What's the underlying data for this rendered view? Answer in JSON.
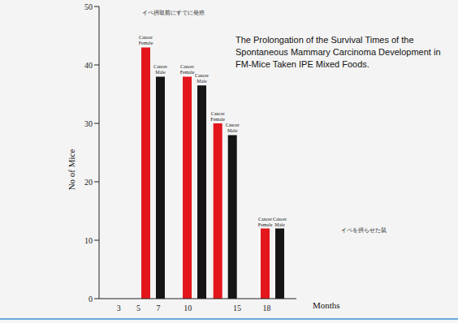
{
  "chart_data": {
    "type": "bar",
    "title": "The Prolongation of the Survival Times of the Spontaneous Mammary Carcinoma Development in FM-Mice Taken IPE Mixed Foods.",
    "x_label": "Months",
    "y_label": "No of Mice",
    "annotations": [
      "イペ摂取前にすでに発癌",
      "イペを摂らせた鼠"
    ],
    "x": [
      6.5,
      10.7,
      13.8,
      18.6
    ],
    "series": [
      {
        "name": "Cancer Female",
        "color": "#e3161b",
        "values": [
          43,
          38,
          30,
          12
        ]
      },
      {
        "name": "Cancer Male",
        "color": "#151515",
        "values": [
          38,
          36.5,
          28,
          12
        ]
      }
    ],
    "xlim": [
      1,
      21
    ],
    "xticks": [
      3,
      5,
      7,
      10,
      15,
      18
    ],
    "ylim": [
      0,
      50
    ],
    "yticks": [
      0,
      10,
      20,
      30,
      40,
      50
    ],
    "grid": false
  }
}
